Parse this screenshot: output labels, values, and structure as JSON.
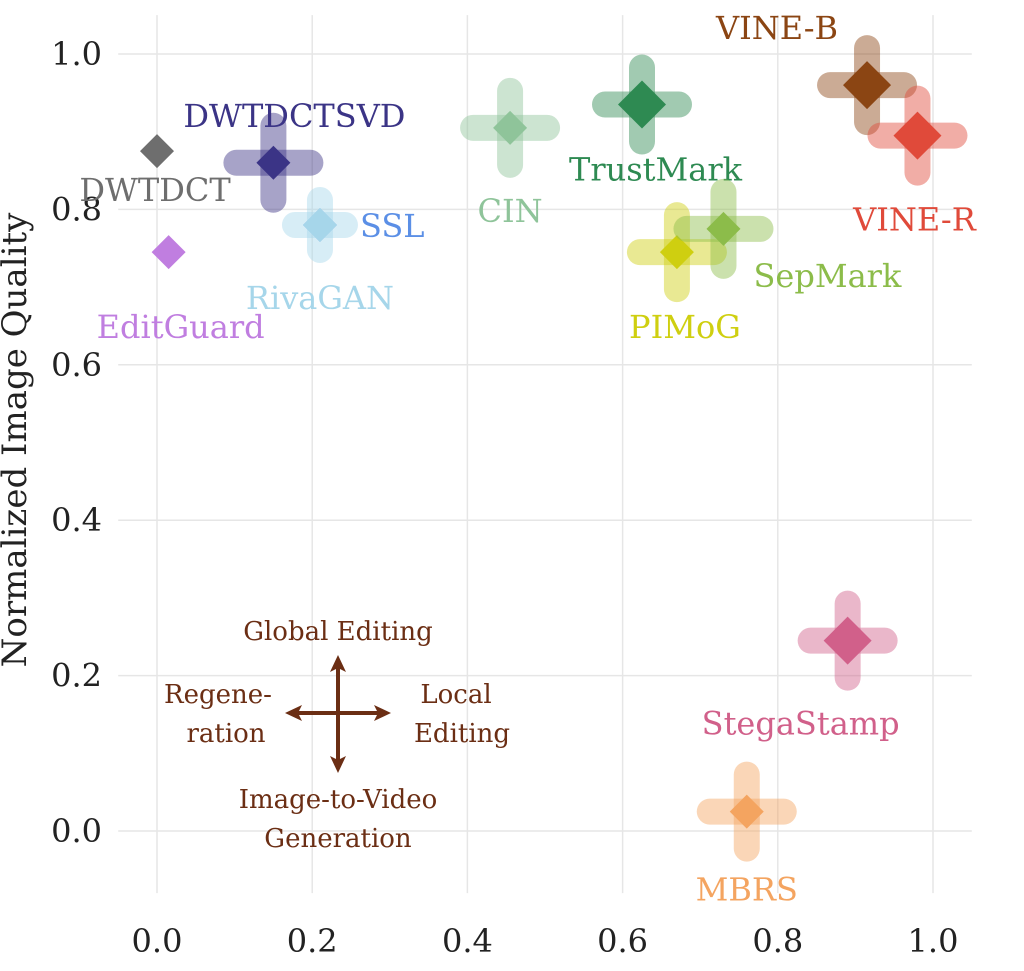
{
  "chart_data": {
    "type": "scatter",
    "title": "",
    "xlabel": "",
    "ylabel": "Normalized Image Quality",
    "xlim": [
      -0.05,
      1.05
    ],
    "ylim": [
      -0.08,
      1.05
    ],
    "xticks": [
      "0.0",
      "0.2",
      "0.4",
      "0.6",
      "0.8",
      "1.0"
    ],
    "yticks": [
      "0.0",
      "0.2",
      "0.4",
      "0.6",
      "0.8",
      "1.0"
    ],
    "grid": true,
    "points": [
      {
        "name": "DWTDCT",
        "x": 0.0,
        "y": 0.875,
        "color": "#6e6e6e",
        "label_pos": "below"
      },
      {
        "name": "DWTDCTSVD",
        "x": 0.15,
        "y": 0.86,
        "color": "#3b3486",
        "label_pos": "above-right"
      },
      {
        "name": "SSL",
        "x": 0.21,
        "y": 0.78,
        "color": "#5b8fe6",
        "label_pos": "right"
      },
      {
        "name": "RivaGAN",
        "x": 0.21,
        "y": 0.78,
        "color": "#a6d6ea",
        "label_pos": "below"
      },
      {
        "name": "EditGuard",
        "x": 0.015,
        "y": 0.745,
        "color": "#c07ee0",
        "label_pos": "below"
      },
      {
        "name": "CIN",
        "x": 0.455,
        "y": 0.905,
        "color": "#8fc49a",
        "label_pos": "below"
      },
      {
        "name": "TrustMark",
        "x": 0.625,
        "y": 0.935,
        "color": "#2e8a52",
        "label_pos": "below-right"
      },
      {
        "name": "PIMoG",
        "x": 0.67,
        "y": 0.745,
        "color": "#cfcf10",
        "label_pos": "below"
      },
      {
        "name": "SepMark",
        "x": 0.73,
        "y": 0.775,
        "color": "#8cbc4a",
        "label_pos": "below-right"
      },
      {
        "name": "VINE-B",
        "x": 0.915,
        "y": 0.96,
        "color": "#8b4513",
        "label_pos": "above-left"
      },
      {
        "name": "VINE-R",
        "x": 0.98,
        "y": 0.895,
        "color": "#e04a3a",
        "label_pos": "below"
      },
      {
        "name": "StegaStamp",
        "x": 0.89,
        "y": 0.245,
        "color": "#d1608a",
        "label_pos": "below"
      },
      {
        "name": "MBRS",
        "x": 0.76,
        "y": 0.025,
        "color": "#f4a460",
        "label_pos": "below"
      }
    ],
    "legend": {
      "color": "#6b2e14",
      "up": "Global Editing",
      "left_line1": "Regene-",
      "left_line2": "ration",
      "right_line1": "Local",
      "right_line2": "Editing",
      "down_line1": "Image-to-Video",
      "down_line2": "Generation"
    }
  }
}
